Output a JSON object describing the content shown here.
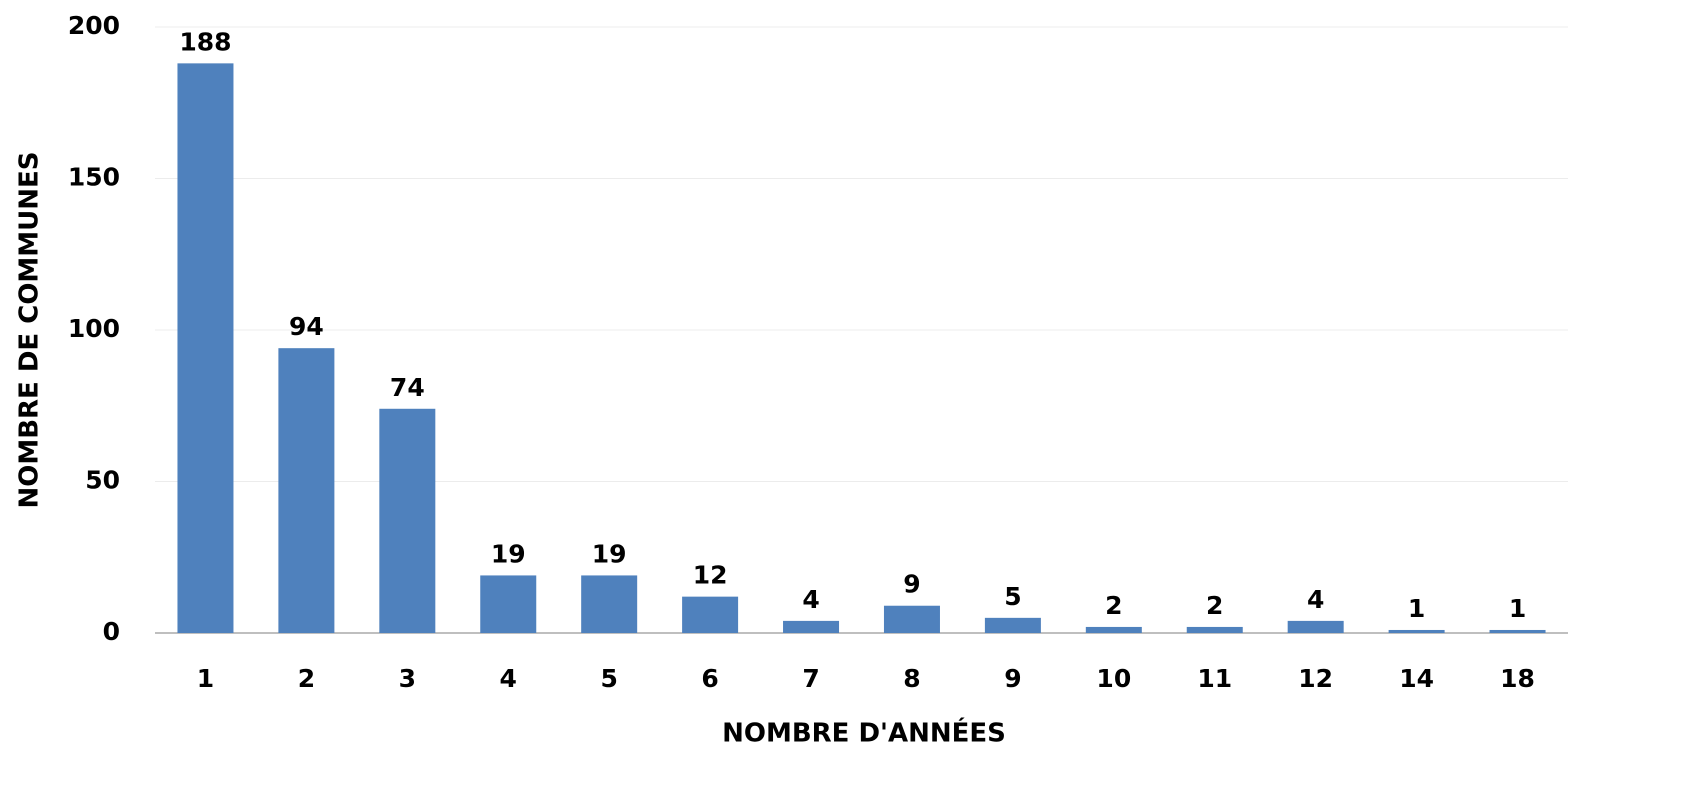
{
  "chart_data": {
    "type": "bar",
    "x_label": "NOMBRE D'ANNÉES",
    "y_label": "NOMBRE DE COMMUNES",
    "categories": [
      "1",
      "2",
      "3",
      "4",
      "5",
      "6",
      "7",
      "8",
      "9",
      "10",
      "11",
      "12",
      "14",
      "18"
    ],
    "values": [
      188,
      94,
      74,
      19,
      19,
      12,
      4,
      9,
      5,
      2,
      2,
      4,
      1,
      1
    ],
    "color": "#4f81bd",
    "ylim": [
      0,
      200
    ],
    "yticks": [
      0,
      50,
      100,
      150,
      200
    ],
    "grid": true
  }
}
